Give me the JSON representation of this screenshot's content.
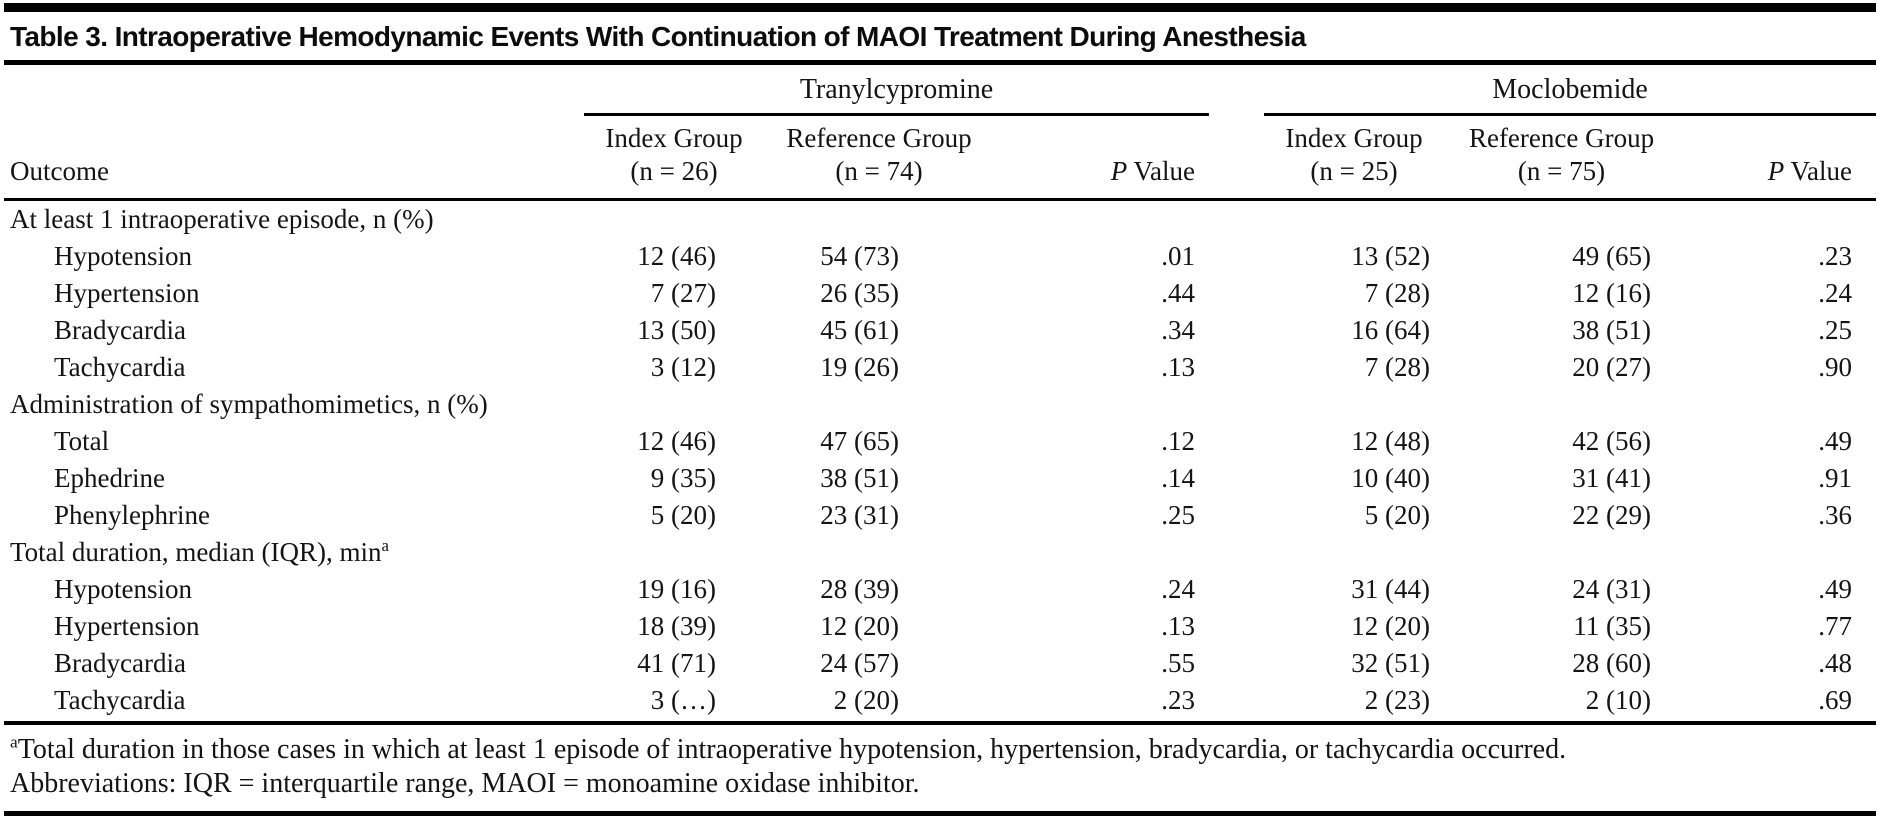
{
  "title": "Table 3. Intraoperative Hemodynamic Events With Continuation of MAOI Treatment During Anesthesia",
  "table": {
    "outcome_header": "Outcome",
    "groups": [
      {
        "name": "Tranylcypromine",
        "columns": [
          {
            "title": "Index Group",
            "n": "(n = 26)"
          },
          {
            "title": "Reference Group",
            "n": "(n = 74)"
          },
          {
            "p": "P",
            "rest": " Value"
          }
        ]
      },
      {
        "name": "Moclobemide",
        "columns": [
          {
            "title": "Index Group",
            "n": "(n = 25)"
          },
          {
            "title": "Reference Group",
            "n": "(n = 75)"
          },
          {
            "p": "P",
            "rest": " Value"
          }
        ]
      }
    ],
    "rows": [
      {
        "type": "section",
        "label": "At least 1 intraoperative episode, n (%)"
      },
      {
        "type": "data",
        "label": "Hypotension",
        "cells": [
          "12 (46)",
          "54 (73)",
          ".01",
          "13 (52)",
          "49 (65)",
          ".23"
        ]
      },
      {
        "type": "data",
        "label": "Hypertension",
        "cells": [
          "7 (27)",
          "26 (35)",
          ".44",
          "7 (28)",
          "12 (16)",
          ".24"
        ]
      },
      {
        "type": "data",
        "label": "Bradycardia",
        "cells": [
          "13 (50)",
          "45 (61)",
          ".34",
          "16 (64)",
          "38 (51)",
          ".25"
        ]
      },
      {
        "type": "data",
        "label": "Tachycardia",
        "cells": [
          "3 (12)",
          "19 (26)",
          ".13",
          "7 (28)",
          "20 (27)",
          ".90"
        ]
      },
      {
        "type": "section",
        "label": "Administration of sympathomimetics, n (%)"
      },
      {
        "type": "data",
        "label": "Total",
        "cells": [
          "12 (46)",
          "47 (65)",
          ".12",
          "12 (48)",
          "42 (56)",
          ".49"
        ]
      },
      {
        "type": "data",
        "label": "Ephedrine",
        "cells": [
          "9 (35)",
          "38 (51)",
          ".14",
          "10 (40)",
          "31 (41)",
          ".91"
        ]
      },
      {
        "type": "data",
        "label": "Phenylephrine",
        "cells": [
          "5 (20)",
          "23 (31)",
          ".25",
          "5 (20)",
          "22 (29)",
          ".36"
        ]
      },
      {
        "type": "section",
        "label": "Total duration, median (IQR), min",
        "sup": "a"
      },
      {
        "type": "data",
        "label": "Hypotension",
        "cells": [
          "19 (16)",
          "28 (39)",
          ".24",
          "31 (44)",
          "24 (31)",
          ".49"
        ]
      },
      {
        "type": "data",
        "label": "Hypertension",
        "cells": [
          "18 (39)",
          "12 (20)",
          ".13",
          "12 (20)",
          "11 (35)",
          ".77"
        ]
      },
      {
        "type": "data",
        "label": "Bradycardia",
        "cells": [
          "41 (71)",
          "24 (57)",
          ".55",
          "32 (51)",
          "28 (60)",
          ".48"
        ]
      },
      {
        "type": "data",
        "label": "Tachycardia",
        "cells": [
          "3 (…)",
          "2 (20)",
          ".23",
          "2 (23)",
          "2 (10)",
          ".69"
        ]
      }
    ]
  },
  "footnotes": {
    "marker": "a",
    "text": "Total duration in those cases in which at least 1 episode of intraoperative hypotension, hypertension, bradycardia, or tachycardia occurred.",
    "abbreviations": "Abbreviations: IQR = interquartile range, MAOI = monoamine oxidase inhibitor."
  }
}
